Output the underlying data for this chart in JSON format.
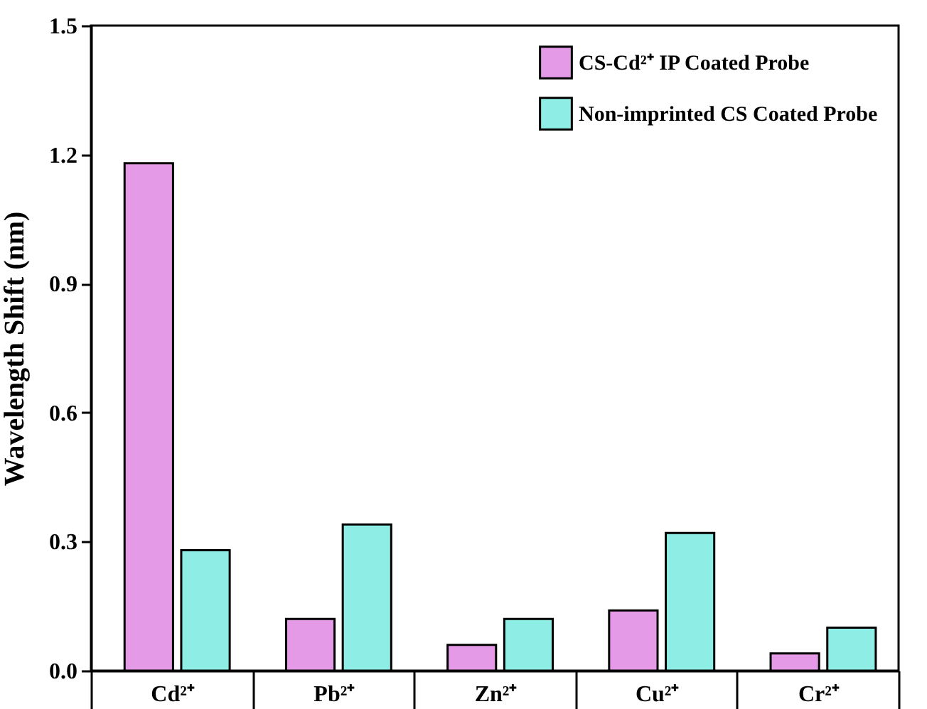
{
  "chart_data": {
    "type": "bar",
    "ylabel": "Wavelength Shift (nm)",
    "categories": [
      "Cd²⁺",
      "Pb²⁺",
      "Zn²⁺",
      "Cu²⁺",
      "Cr²⁺"
    ],
    "series": [
      {
        "name": "CS-Cd²⁺ IP Coated Probe",
        "color": "#e59ae8",
        "values": [
          1.18,
          0.12,
          0.06,
          0.14,
          0.04
        ]
      },
      {
        "name": "Non-imprinted CS Coated Probe",
        "color": "#8eeee6",
        "values": [
          0.28,
          0.34,
          0.12,
          0.32,
          0.1
        ]
      }
    ],
    "ylim": [
      0,
      1.5
    ],
    "yticks": [
      "0.0",
      0.3,
      0.6,
      0.9,
      1.2,
      1.5
    ],
    "grid": false,
    "legend": "top right"
  }
}
